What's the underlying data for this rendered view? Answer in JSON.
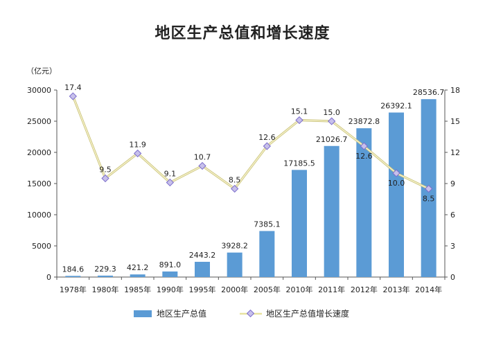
{
  "chart_data": {
    "type": "bar",
    "title": "地区生产总值和增长速度",
    "left_unit": "（亿元）",
    "categories": [
      "1978年",
      "1980年",
      "1985年",
      "1990年",
      "1995年",
      "2000年",
      "2005年",
      "2010年",
      "2011年",
      "2012年",
      "2013年",
      "2014年"
    ],
    "series": [
      {
        "name": "地区生产总值",
        "type": "bar",
        "axis": "left",
        "color": "#5b9bd5",
        "values": [
          184.6,
          229.3,
          421.2,
          891.0,
          2443.2,
          3928.2,
          7385.1,
          17185.5,
          21026.7,
          23872.8,
          26392.1,
          28536.7
        ],
        "labels": [
          "184.6",
          "229.3",
          "421.2",
          "891.0",
          "2443.2",
          "3928.2",
          "7385.1",
          "17185.5",
          "21026.7",
          "23872.8",
          "26392.1",
          "28536.7"
        ]
      },
      {
        "name": "地区生产总值增长速度",
        "type": "line",
        "axis": "right",
        "color": "#e8e3a0",
        "values": [
          17.4,
          9.5,
          11.9,
          9.1,
          10.7,
          8.5,
          12.6,
          15.1,
          15.0,
          12.6,
          10.0,
          8.5
        ],
        "labels": [
          "17.4",
          "9.5",
          "11.9",
          "9.1",
          "10.7",
          "8.5",
          "12.6",
          "15.1",
          "15.0",
          "12.6",
          "10.0",
          "8.5"
        ]
      }
    ],
    "left_axis": {
      "min": 0,
      "max": 30000,
      "ticks": [
        "0",
        "5000",
        "10000",
        "15000",
        "20000",
        "25000",
        "30000"
      ]
    },
    "right_axis": {
      "min": 0,
      "max": 18,
      "ticks": [
        "0",
        "3",
        "6",
        "9",
        "12",
        "15",
        "18"
      ]
    },
    "grid": false,
    "legend_position": "bottom"
  }
}
